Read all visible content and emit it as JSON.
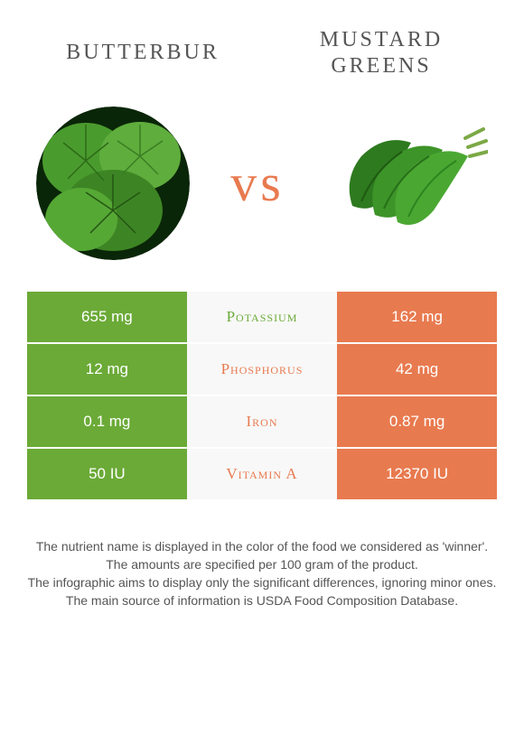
{
  "food_left": {
    "name": "Butterbur",
    "color": "#6baa37"
  },
  "food_right": {
    "name": "Mustard Greens",
    "color": "#e87a4f"
  },
  "vs_label": "vs",
  "rows": [
    {
      "left": "655 mg",
      "nutrient": "Potassium",
      "right": "162 mg",
      "winner": "left"
    },
    {
      "left": "12 mg",
      "nutrient": "Phosphorus",
      "right": "42 mg",
      "winner": "right"
    },
    {
      "left": "0.1 mg",
      "nutrient": "Iron",
      "right": "0.87 mg",
      "winner": "right"
    },
    {
      "left": "50 IU",
      "nutrient": "Vitamin A",
      "right": "12370 IU",
      "winner": "right"
    }
  ],
  "footer_lines": [
    "The nutrient name is displayed in the color of the food we considered as 'winner'.",
    "The amounts are specified per 100 gram of the product.",
    "The infographic aims to display only the significant differences, ignoring minor ones.",
    "The main source of information is USDA Food Composition Database."
  ],
  "colors": {
    "left_cell_bg": "#6baa37",
    "right_cell_bg": "#e87a4f",
    "mid_cell_bg": "#f8f8f8",
    "vs_color": "#e87a4f"
  }
}
